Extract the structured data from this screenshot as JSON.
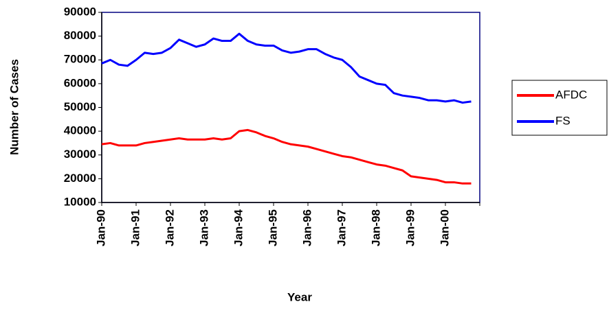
{
  "chart_data": {
    "type": "line",
    "x_label": "Year",
    "y_label": "Number of Cases",
    "categories": [
      "Jan-90",
      null,
      null,
      null,
      "Jan-91",
      null,
      null,
      null,
      "Jan-92",
      null,
      null,
      null,
      "Jan-93",
      null,
      null,
      null,
      "Jan-94",
      null,
      null,
      null,
      "Jan-95",
      null,
      null,
      null,
      "Jan-96",
      null,
      null,
      null,
      "Jan-97",
      null,
      null,
      null,
      "Jan-98",
      null,
      null,
      null,
      "Jan-99",
      null,
      null,
      null,
      "Jan-00",
      null,
      null,
      null
    ],
    "series": [
      {
        "name": "AFDC",
        "color": "#ff0000",
        "values": [
          34500,
          35000,
          34000,
          34000,
          34000,
          35000,
          35500,
          36000,
          36500,
          37000,
          36500,
          36500,
          36500,
          37000,
          36500,
          37000,
          40000,
          40500,
          39500,
          38000,
          37000,
          35500,
          34500,
          34000,
          33500,
          32500,
          31500,
          30500,
          29500,
          29000,
          28000,
          27000,
          26000,
          25500,
          24500,
          23500,
          21000,
          20500,
          20000,
          19500,
          18500,
          18500,
          18000,
          18000
        ]
      },
      {
        "name": "FS",
        "color": "#0000ff",
        "values": [
          68500,
          70000,
          68000,
          67500,
          70000,
          73000,
          72500,
          73000,
          75000,
          78500,
          77000,
          75500,
          76500,
          79000,
          78000,
          78000,
          81000,
          78000,
          76500,
          76000,
          76000,
          74000,
          73000,
          73500,
          74500,
          74500,
          72500,
          71000,
          70000,
          67000,
          63000,
          61500,
          60000,
          59500,
          56000,
          55000,
          54500,
          54000,
          53000,
          53000,
          52500,
          53000,
          52000,
          52500
        ]
      }
    ],
    "ylim": [
      10000,
      90000
    ],
    "yticks": [
      10000,
      20000,
      30000,
      40000,
      50000,
      60000,
      70000,
      80000,
      90000
    ],
    "legend": "right"
  }
}
